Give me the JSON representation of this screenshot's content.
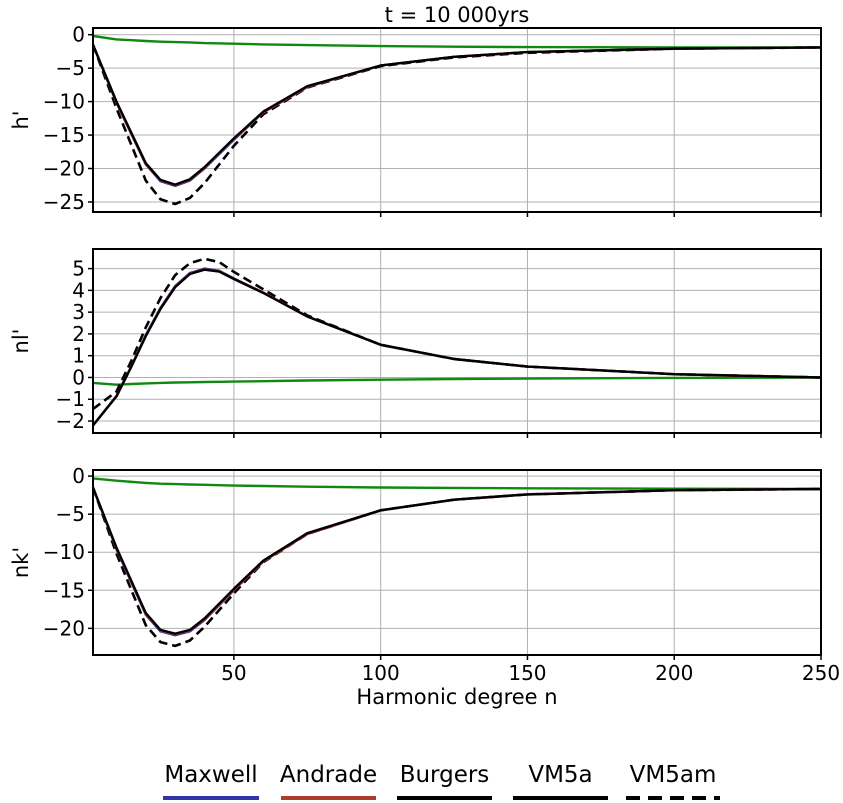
{
  "chart_data": {
    "type": "line",
    "title": "t = 10 000yrs",
    "xlabel": "Harmonic degree n",
    "xlim": [
      2,
      250
    ],
    "xticks": [
      50,
      100,
      150,
      200,
      250
    ],
    "grid": true,
    "legend_position": "bottom",
    "legend": [
      {
        "name": "Maxwell",
        "color": "#3333aa",
        "style": "solid"
      },
      {
        "name": "Andrade",
        "color": "#b03a2e",
        "style": "solid"
      },
      {
        "name": "Burgers",
        "color": "#000000",
        "style": "solid"
      },
      {
        "name": "VM5a",
        "color": "#000000",
        "style": "solid"
      },
      {
        "name": "VM5am",
        "color": "#000000",
        "style": "dashed"
      }
    ],
    "panels": [
      {
        "ylabel": "h'",
        "ylim": [
          -26.5,
          1
        ],
        "yticks": [
          0,
          -5,
          -10,
          -15,
          -20,
          -25
        ],
        "ytick_labels": [
          "0",
          "−5",
          "−10",
          "−15",
          "−20",
          "−25"
        ],
        "x": [
          2,
          10,
          20,
          25,
          30,
          35,
          40,
          50,
          60,
          75,
          100,
          125,
          150,
          200,
          250
        ],
        "series": [
          {
            "name": "Maxwell",
            "color": "#3333aa",
            "dash": false,
            "values": [
              -1.5,
              -10.2,
              -19.4,
              -21.9,
              -22.6,
              -21.8,
              -20.0,
              -15.7,
              -11.6,
              -7.8,
              -4.6,
              -3.3,
              -2.6,
              -2.1,
              -1.9
            ]
          },
          {
            "name": "Andrade",
            "color": "#b03a2e",
            "dash": false,
            "values": [
              -1.5,
              -10.1,
              -19.3,
              -21.8,
              -22.5,
              -21.7,
              -19.9,
              -15.6,
              -11.6,
              -7.8,
              -4.6,
              -3.3,
              -2.6,
              -2.1,
              -1.9
            ]
          },
          {
            "name": "Burgers",
            "color": "#000000",
            "dash": false,
            "values": [
              -1.5,
              -10.0,
              -19.2,
              -21.7,
              -22.4,
              -21.6,
              -19.8,
              -15.5,
              -11.5,
              -7.7,
              -4.6,
              -3.3,
              -2.6,
              -2.1,
              -1.9
            ]
          },
          {
            "name": "VM5am",
            "color": "#000000",
            "dash": true,
            "values": [
              -1.5,
              -11.0,
              -21.8,
              -24.6,
              -25.3,
              -24.4,
              -22.2,
              -16.6,
              -11.9,
              -7.9,
              -4.7,
              -3.4,
              -2.7,
              -2.1,
              -1.9
            ]
          },
          {
            "name": "",
            "color": "#118811",
            "dash": false,
            "values": [
              -0.2,
              -0.7,
              -0.95,
              -1.05,
              -1.1,
              -1.15,
              -1.25,
              -1.35,
              -1.45,
              -1.55,
              -1.7,
              -1.8,
              -1.85,
              -1.9,
              -1.9
            ]
          }
        ]
      },
      {
        "ylabel": "nl'",
        "ylim": [
          -2.55,
          5.9
        ],
        "yticks": [
          5,
          4,
          3,
          2,
          1,
          0,
          -1,
          -2
        ],
        "ytick_labels": [
          "5",
          "4",
          "3",
          "2",
          "1",
          "0",
          "−1",
          "−2"
        ],
        "x": [
          2,
          10,
          15,
          20,
          25,
          30,
          35,
          40,
          45,
          50,
          60,
          75,
          100,
          125,
          150,
          200,
          250
        ],
        "series": [
          {
            "name": "Maxwell",
            "color": "#3333aa",
            "dash": false,
            "values": [
              -2.2,
              -0.85,
              0.5,
              1.95,
              3.2,
              4.2,
              4.8,
              5.0,
              4.9,
              4.55,
              3.9,
              2.8,
              1.5,
              0.85,
              0.5,
              0.15,
              0.0
            ]
          },
          {
            "name": "Andrade",
            "color": "#b03a2e",
            "dash": false,
            "values": [
              -2.2,
              -0.85,
              0.5,
              1.92,
              3.17,
              4.17,
              4.77,
              4.97,
              4.88,
              4.53,
              3.9,
              2.8,
              1.5,
              0.85,
              0.5,
              0.15,
              0.0
            ]
          },
          {
            "name": "Burgers",
            "color": "#000000",
            "dash": false,
            "values": [
              -2.2,
              -0.87,
              0.48,
              1.9,
              3.15,
              4.15,
              4.75,
              4.95,
              4.86,
              4.52,
              3.88,
              2.8,
              1.5,
              0.85,
              0.5,
              0.15,
              0.0
            ]
          },
          {
            "name": "VM5am",
            "color": "#000000",
            "dash": true,
            "values": [
              -1.45,
              -0.65,
              0.75,
              2.3,
              3.65,
              4.7,
              5.25,
              5.45,
              5.3,
              4.85,
              4.05,
              2.85,
              1.5,
              0.85,
              0.5,
              0.15,
              0.0
            ]
          },
          {
            "name": "",
            "color": "#118811",
            "dash": false,
            "values": [
              -0.25,
              -0.33,
              -0.3,
              -0.27,
              -0.25,
              -0.23,
              -0.22,
              -0.21,
              -0.2,
              -0.19,
              -0.17,
              -0.14,
              -0.1,
              -0.07,
              -0.05,
              -0.02,
              0.0
            ]
          }
        ]
      },
      {
        "ylabel": "nk'",
        "ylim": [
          -23.5,
          0.8
        ],
        "yticks": [
          0,
          -5,
          -10,
          -15,
          -20
        ],
        "ytick_labels": [
          "0",
          "−5",
          "−10",
          "−15",
          "−20"
        ],
        "x": [
          2,
          10,
          20,
          25,
          30,
          35,
          40,
          50,
          60,
          75,
          100,
          125,
          150,
          200,
          250
        ],
        "series": [
          {
            "name": "Maxwell",
            "color": "#3333aa",
            "dash": false,
            "values": [
              -1.5,
              -9.6,
              -18.2,
              -20.4,
              -20.9,
              -20.4,
              -18.9,
              -15.0,
              -11.2,
              -7.6,
              -4.5,
              -3.1,
              -2.4,
              -1.85,
              -1.7
            ]
          },
          {
            "name": "Andrade",
            "color": "#b03a2e",
            "dash": false,
            "values": [
              -1.5,
              -9.5,
              -18.1,
              -20.3,
              -20.8,
              -20.3,
              -18.8,
              -14.9,
              -11.2,
              -7.6,
              -4.5,
              -3.1,
              -2.4,
              -1.85,
              -1.7
            ]
          },
          {
            "name": "Burgers",
            "color": "#000000",
            "dash": false,
            "values": [
              -1.5,
              -9.4,
              -18.0,
              -20.2,
              -20.7,
              -20.2,
              -18.7,
              -14.8,
              -11.1,
              -7.5,
              -4.5,
              -3.1,
              -2.4,
              -1.85,
              -1.7
            ]
          },
          {
            "name": "VM5am",
            "color": "#000000",
            "dash": true,
            "values": [
              -1.5,
              -10.2,
              -19.6,
              -21.8,
              -22.3,
              -21.6,
              -19.8,
              -15.4,
              -11.3,
              -7.6,
              -4.5,
              -3.1,
              -2.4,
              -1.85,
              -1.7
            ]
          },
          {
            "name": "",
            "color": "#118811",
            "dash": false,
            "values": [
              -0.3,
              -0.6,
              -0.9,
              -1.0,
              -1.05,
              -1.1,
              -1.15,
              -1.25,
              -1.3,
              -1.4,
              -1.5,
              -1.55,
              -1.6,
              -1.65,
              -1.7
            ]
          }
        ]
      }
    ]
  }
}
